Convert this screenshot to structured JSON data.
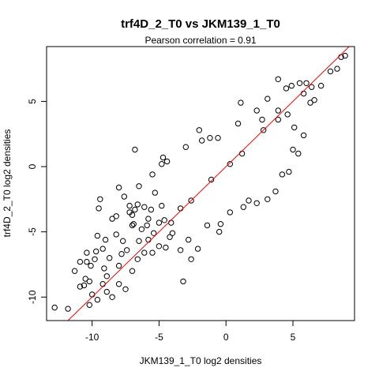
{
  "chart_data": {
    "type": "scatter",
    "title": "trf4D_2_T0 vs JKM139_1_T0",
    "subtitle": "Pearson correlation =  0.91",
    "xlabel": "JKM139_1_T0 log2 densities",
    "ylabel": "trf4D_2_T0 log2 densities",
    "xlim": [
      -13.4,
      9.6
    ],
    "ylim": [
      -11.8,
      9.2
    ],
    "xticks": [
      -10,
      -5,
      0,
      5
    ],
    "yticks": [
      -10,
      -5,
      0,
      5
    ],
    "xtick_labels": [
      "-10",
      "-5",
      "0",
      "5"
    ],
    "ytick_labels": [
      "-10",
      "-5",
      "0",
      "5"
    ],
    "grid": false,
    "legend": "none",
    "point_color": "#000000",
    "line_color": "#ff0000",
    "fit_line": {
      "slope": 1.0,
      "intercept": 0.0
    },
    "series": [
      {
        "points": [
          [
            -12.8,
            -10.8
          ],
          [
            -11.8,
            -10.9
          ],
          [
            -10.2,
            -10.6
          ],
          [
            -10.0,
            -9.8
          ],
          [
            -9.6,
            -10.2
          ],
          [
            -10.9,
            -9.2
          ],
          [
            -10.6,
            -9.1
          ],
          [
            -10.5,
            -8.6
          ],
          [
            -10.2,
            -8.8
          ],
          [
            -11.3,
            -8.0
          ],
          [
            -10.9,
            -7.3
          ],
          [
            -10.4,
            -7.3
          ],
          [
            -10.1,
            -7.6
          ],
          [
            -9.8,
            -7.1
          ],
          [
            -10.4,
            -6.6
          ],
          [
            -9.7,
            -6.5
          ],
          [
            -9.2,
            -6.3
          ],
          [
            -9.0,
            -5.6
          ],
          [
            -9.6,
            -5.3
          ],
          [
            -8.2,
            -5.2
          ],
          [
            -8.5,
            -4.0
          ],
          [
            -8.2,
            -3.8
          ],
          [
            -7.2,
            -3.5
          ],
          [
            -7.0,
            -3.7
          ],
          [
            -6.8,
            -3.3
          ],
          [
            -9.5,
            -3.2
          ],
          [
            -9.4,
            -2.5
          ],
          [
            -7.6,
            -2.3
          ],
          [
            -8.0,
            -1.6
          ],
          [
            -6.5,
            -1.5
          ],
          [
            -6.6,
            -2.9
          ],
          [
            -7.0,
            -4.5
          ],
          [
            -7.2,
            -3.0
          ],
          [
            -6.9,
            -4.4
          ],
          [
            -6.1,
            -3.1
          ],
          [
            -5.6,
            -3.3
          ],
          [
            -4.8,
            -3.0
          ],
          [
            -5.0,
            -4.3
          ],
          [
            -5.3,
            -2.0
          ],
          [
            -5.5,
            -0.6
          ],
          [
            -4.7,
            0.7
          ],
          [
            -4.8,
            0.2
          ],
          [
            -4.4,
            0.4
          ],
          [
            -3.0,
            1.5
          ],
          [
            -2.0,
            2.8
          ],
          [
            -1.8,
            2.0
          ],
          [
            -6.8,
            1.3
          ],
          [
            -5.0,
            -6.1
          ],
          [
            -5.5,
            -6.6
          ],
          [
            -4.5,
            -6.2
          ],
          [
            -4.2,
            -5.4
          ],
          [
            -3.4,
            -6.4
          ],
          [
            -3.2,
            -8.8
          ],
          [
            -2.6,
            -7.1
          ],
          [
            -2.1,
            -6.3
          ],
          [
            -8.5,
            -10.0
          ],
          [
            -8.0,
            -9.0
          ],
          [
            -7.5,
            -9.4
          ],
          [
            -8.9,
            -9.6
          ],
          [
            -9.2,
            -9.0
          ],
          [
            -7.0,
            -8.0
          ],
          [
            -6.6,
            -7.1
          ],
          [
            -6.1,
            -6.6
          ],
          [
            -5.8,
            -5.6
          ],
          [
            -7.4,
            -6.4
          ],
          [
            -8.0,
            -7.6
          ],
          [
            -7.8,
            -6.7
          ],
          [
            -8.9,
            -8.4
          ],
          [
            -8.7,
            -7.0
          ],
          [
            -9.1,
            -7.8
          ],
          [
            -6.3,
            -4.8
          ],
          [
            -5.9,
            -4.5
          ],
          [
            -5.8,
            -4.0
          ],
          [
            -6.5,
            -5.7
          ],
          [
            -7.7,
            -5.7
          ],
          [
            3.7,
            -1.9
          ],
          [
            4.2,
            -0.6
          ],
          [
            4.7,
            -0.4
          ],
          [
            5.0,
            1.3
          ],
          [
            5.4,
            1.0
          ],
          [
            5.8,
            2.4
          ],
          [
            5.1,
            3.0
          ],
          [
            6.3,
            4.9
          ],
          [
            6.6,
            5.1
          ],
          [
            7.1,
            6.2
          ],
          [
            7.8,
            7.3
          ],
          [
            8.3,
            7.5
          ],
          [
            8.6,
            8.4
          ],
          [
            8.9,
            8.5
          ],
          [
            3.9,
            4.3
          ],
          [
            3.1,
            5.2
          ],
          [
            3.9,
            6.7
          ],
          [
            4.5,
            6.0
          ],
          [
            4.9,
            6.2
          ],
          [
            5.5,
            6.4
          ],
          [
            2.7,
            3.6
          ],
          [
            2.3,
            4.3
          ],
          [
            1.1,
            4.9
          ],
          [
            0.9,
            3.3
          ],
          [
            -0.6,
            2.2
          ],
          [
            -1.2,
            2.2
          ],
          [
            2.3,
            -2.8
          ],
          [
            3.1,
            -2.5
          ],
          [
            1.7,
            -2.6
          ],
          [
            1.3,
            -3.1
          ],
          [
            0.3,
            -3.5
          ],
          [
            -0.4,
            -4.4
          ],
          [
            -1.4,
            -4.5
          ],
          [
            -0.5,
            -5.0
          ],
          [
            -2.8,
            -5.6
          ],
          [
            -4.0,
            -5.1
          ],
          [
            6.0,
            6.4
          ],
          [
            6.4,
            6.1
          ],
          [
            5.8,
            5.6
          ],
          [
            3.9,
            3.6
          ],
          [
            4.6,
            4.0
          ],
          [
            2.8,
            2.8
          ],
          [
            1.2,
            1.0
          ],
          [
            0.3,
            0.2
          ],
          [
            -1.1,
            -1.0
          ],
          [
            -2.6,
            -2.6
          ],
          [
            -3.4,
            -3.2
          ],
          [
            -4.1,
            -4.3
          ],
          [
            -4.6,
            -4.1
          ],
          [
            -5.4,
            -5.1
          ]
        ]
      }
    ]
  }
}
